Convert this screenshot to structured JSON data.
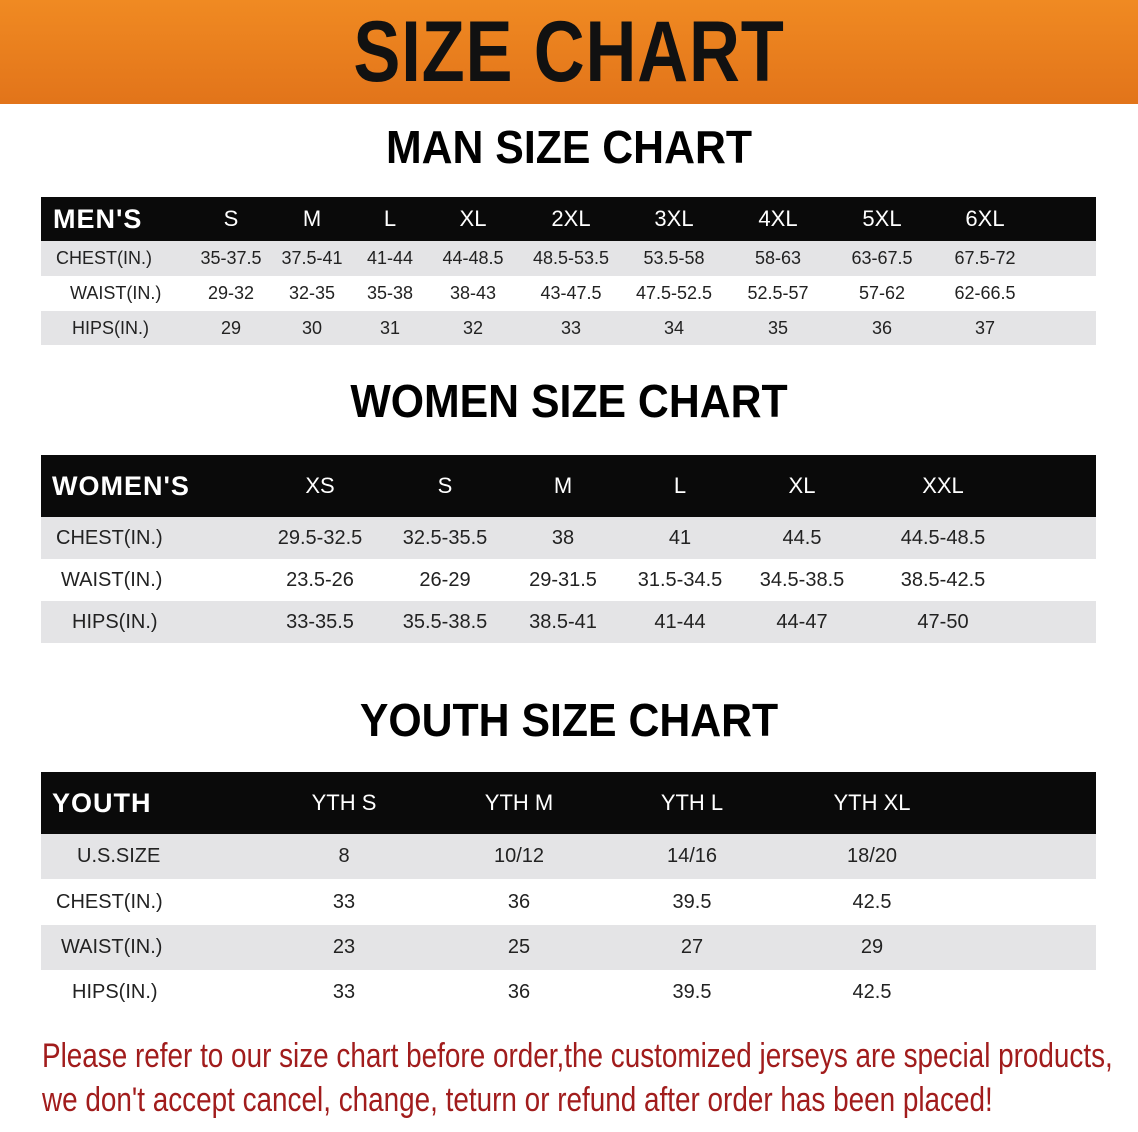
{
  "header": {
    "title": "SIZE CHART",
    "color": "#e8791c"
  },
  "men": {
    "title": "MAN SIZE CHART",
    "columns": [
      "MEN'S",
      "S",
      "M",
      "L",
      "XL",
      "2XL",
      "3XL",
      "4XL",
      "5XL",
      "6XL"
    ],
    "rows": [
      [
        "CHEST(IN.)",
        "35-37.5",
        "37.5-41",
        "41-44",
        "44-48.5",
        "48.5-53.5",
        "53.5-58",
        "58-63",
        "63-67.5",
        "67.5-72"
      ],
      [
        "WAIST(IN.)",
        "29-32",
        "32-35",
        "35-38",
        "38-43",
        "43-47.5",
        "47.5-52.5",
        "52.5-57",
        "57-62",
        "62-66.5"
      ],
      [
        "HIPS(IN.)",
        "29",
        "30",
        "31",
        "32",
        "33",
        "34",
        "35",
        "36",
        "37"
      ]
    ]
  },
  "women": {
    "title": "WOMEN SIZE CHART",
    "columns": [
      "WOMEN'S",
      "XS",
      "S",
      "M",
      "L",
      "XL",
      "XXL"
    ],
    "rows": [
      [
        "CHEST(IN.)",
        "29.5-32.5",
        "32.5-35.5",
        "38",
        "41",
        "44.5",
        "44.5-48.5"
      ],
      [
        "WAIST(IN.)",
        "23.5-26",
        "26-29",
        "29-31.5",
        "31.5-34.5",
        "34.5-38.5",
        "38.5-42.5"
      ],
      [
        "HIPS(IN.)",
        "33-35.5",
        "35.5-38.5",
        "38.5-41",
        "41-44",
        "44-47",
        "47-50"
      ]
    ]
  },
  "youth": {
    "title": "YOUTH SIZE CHART",
    "columns": [
      "YOUTH",
      "YTH S",
      "YTH M",
      "YTH L",
      "YTH XL"
    ],
    "rows": [
      [
        "U.S.SIZE",
        "8",
        "10/12",
        "14/16",
        "18/20"
      ],
      [
        "CHEST(IN.)",
        "33",
        "36",
        "39.5",
        "42.5"
      ],
      [
        "WAIST(IN.)",
        "23",
        "25",
        "27",
        "29"
      ],
      [
        "HIPS(IN.)",
        "33",
        "36",
        "39.5",
        "42.5"
      ]
    ]
  },
  "notice": {
    "line1": "Please refer to our size chart before order,the customized jerseys are special products,",
    "line2": "we don't accept cancel, change, teturn or refund after order has been placed!",
    "color": "#a11c1c"
  }
}
